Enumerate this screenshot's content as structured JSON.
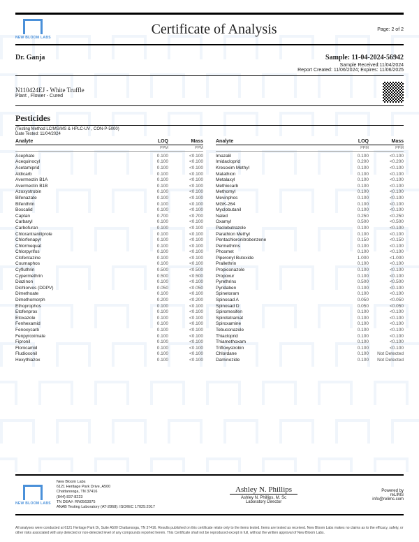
{
  "lab_name": "NEW BLOOM LABS",
  "title": "Certificate of Analysis",
  "page_label": "Page: 2 of 2",
  "client": "Dr. Ganja",
  "sample_id": "Sample: 11-04-2024-56942",
  "sample_received": "Sample Received:11/04/2024",
  "report_info": "Report Created: 11/06/2024; Expires: 11/06/2025",
  "product_code": "N110424EJ - White Truffle",
  "product_type": "Plant , Flower - Cured",
  "section_title": "Pesticides",
  "method": "(Testing Method LC/MS/MS & HPLC-UV , CON-P-5000)",
  "date_tested": "Date Tested: 11/04/2024",
  "headers": {
    "analyte": "Analyte",
    "loq": "LOQ",
    "mass": "Mass",
    "ppm": "PPM"
  },
  "left": [
    {
      "a": "Acephate",
      "l": "0.100",
      "m": "<0.100"
    },
    {
      "a": "Acequinocyl",
      "l": "0.100",
      "m": "<0.100"
    },
    {
      "a": "Acetamiprid",
      "l": "0.100",
      "m": "<0.100"
    },
    {
      "a": "Aldicarb",
      "l": "0.100",
      "m": "<0.100"
    },
    {
      "a": "Avermectin B1A",
      "l": "0.100",
      "m": "<0.100"
    },
    {
      "a": "Avermectin B1B",
      "l": "0.100",
      "m": "<0.100"
    },
    {
      "a": "Azoxystrobin",
      "l": "0.100",
      "m": "<0.100"
    },
    {
      "a": "Bifenazate",
      "l": "0.100",
      "m": "<0.100"
    },
    {
      "a": "Bifenthrin",
      "l": "0.100",
      "m": "<0.100"
    },
    {
      "a": "Boscalid",
      "l": "0.100",
      "m": "<0.100"
    },
    {
      "a": "Captan",
      "l": "0.700",
      "m": "<0.700"
    },
    {
      "a": "Carbaryl",
      "l": "0.100",
      "m": "<0.100"
    },
    {
      "a": "Carbofuran",
      "l": "0.100",
      "m": "<0.100"
    },
    {
      "a": "Chlorantraniliprole",
      "l": "0.100",
      "m": "<0.100"
    },
    {
      "a": "Chlorfenapyr",
      "l": "0.100",
      "m": "<0.100"
    },
    {
      "a": "Chlormequat",
      "l": "0.100",
      "m": "<0.100"
    },
    {
      "a": "Chlorpyrifos",
      "l": "0.100",
      "m": "<0.100"
    },
    {
      "a": "Clofentazine",
      "l": "0.100",
      "m": "<0.100"
    },
    {
      "a": "Coumaphos",
      "l": "0.100",
      "m": "<0.100"
    },
    {
      "a": "Cyfluthrin",
      "l": "0.500",
      "m": "<0.500"
    },
    {
      "a": "Cypermethrin",
      "l": "0.500",
      "m": "<0.500"
    },
    {
      "a": "Diazinon",
      "l": "0.100",
      "m": "<0.100"
    },
    {
      "a": "Dichlorvos (DDPV)",
      "l": "0.050",
      "m": "<0.050"
    },
    {
      "a": "Dimethoate",
      "l": "0.100",
      "m": "<0.100"
    },
    {
      "a": "Dimethomorph",
      "l": "0.200",
      "m": "<0.200"
    },
    {
      "a": "Ethoprophos",
      "l": "0.100",
      "m": "<0.100"
    },
    {
      "a": "Etofenprox",
      "l": "0.100",
      "m": "<0.100"
    },
    {
      "a": "Etoxazole",
      "l": "0.100",
      "m": "<0.100"
    },
    {
      "a": "Fenhexamid",
      "l": "0.100",
      "m": "<0.100"
    },
    {
      "a": "Fenoxycarb",
      "l": "0.100",
      "m": "<0.100"
    },
    {
      "a": "Fenpyroximate",
      "l": "0.100",
      "m": "<0.100"
    },
    {
      "a": "Fipronil",
      "l": "0.100",
      "m": "<0.100"
    },
    {
      "a": "Flonicamid",
      "l": "0.100",
      "m": "<0.100"
    },
    {
      "a": "Fludioxonil",
      "l": "0.100",
      "m": "<0.100"
    },
    {
      "a": "Hexythiazox",
      "l": "0.100",
      "m": "<0.100"
    }
  ],
  "right": [
    {
      "a": "Imazalil",
      "l": "0.100",
      "m": "<0.100"
    },
    {
      "a": "Imidacloprid",
      "l": "0.200",
      "m": "<0.200"
    },
    {
      "a": "Kresoxim Methyl",
      "l": "0.100",
      "m": "<0.100"
    },
    {
      "a": "Malathion",
      "l": "0.100",
      "m": "<0.100"
    },
    {
      "a": "Metalaxyl",
      "l": "0.100",
      "m": "<0.100"
    },
    {
      "a": "Methiocarb",
      "l": "0.100",
      "m": "<0.100"
    },
    {
      "a": "Methomyl",
      "l": "0.100",
      "m": "<0.100"
    },
    {
      "a": "Mevinphos",
      "l": "0.100",
      "m": "<0.100"
    },
    {
      "a": "MGK-264",
      "l": "0.100",
      "m": "<0.100"
    },
    {
      "a": "Myclobutanil",
      "l": "0.100",
      "m": "<0.100"
    },
    {
      "a": "Naled",
      "l": "0.250",
      "m": "<0.250"
    },
    {
      "a": "Oxamyl",
      "l": "0.500",
      "m": "<0.500"
    },
    {
      "a": "Paclobutrazole",
      "l": "0.100",
      "m": "<0.100"
    },
    {
      "a": "Parathion Methyl",
      "l": "0.100",
      "m": "<0.100"
    },
    {
      "a": "Pentachloronitrobenzene",
      "l": "0.150",
      "m": "<0.150"
    },
    {
      "a": "Permethrins",
      "l": "0.100",
      "m": "<0.100"
    },
    {
      "a": "Phosmet",
      "l": "0.100",
      "m": "<0.100"
    },
    {
      "a": "Piperonyl Butoxide",
      "l": "1.000",
      "m": "<1.000"
    },
    {
      "a": "Prallethrin",
      "l": "0.100",
      "m": "<0.100"
    },
    {
      "a": "Propiconazole",
      "l": "0.100",
      "m": "<0.100"
    },
    {
      "a": "Propoxur",
      "l": "0.100",
      "m": "<0.100"
    },
    {
      "a": "Pyrethrins",
      "l": "0.500",
      "m": "<0.500"
    },
    {
      "a": "Pyridaben",
      "l": "0.100",
      "m": "<0.100"
    },
    {
      "a": "Spinetoram",
      "l": "0.100",
      "m": "<0.100"
    },
    {
      "a": "Spinosad A",
      "l": "0.050",
      "m": "<0.050"
    },
    {
      "a": "Spinosad D",
      "l": "0.050",
      "m": "<0.050"
    },
    {
      "a": "Spiromesifen",
      "l": "0.100",
      "m": "<0.100"
    },
    {
      "a": "Spirotetramat",
      "l": "0.100",
      "m": "<0.100"
    },
    {
      "a": "Spiroxamine",
      "l": "0.100",
      "m": "<0.100"
    },
    {
      "a": "Tebuconazole",
      "l": "0.100",
      "m": "<0.100"
    },
    {
      "a": "Thiacloprid",
      "l": "0.100",
      "m": "<0.100"
    },
    {
      "a": "Thiamethoxam",
      "l": "0.100",
      "m": "<0.100"
    },
    {
      "a": "Trifloxystrobin",
      "l": "0.100",
      "m": "<0.100"
    },
    {
      "a": "Chlordane",
      "l": "0.100",
      "m": "Not Detected"
    },
    {
      "a": "Daminozide",
      "l": "0.100",
      "m": "Not Detected"
    }
  ],
  "footer": {
    "addr1": "New Bloom Labs",
    "addr2": "6121 Heritage Park Drive, A500",
    "addr3": "Chattanooga, TN 37416",
    "phone": "(844) 837-8223",
    "dea": "TN DEA#: RN0563975",
    "cert": "ANAB Testing Laboratory (AT-2868): ISO/IEC 17025:2017",
    "sig": "Ashley N. Phillips",
    "sig_name": "Ashley N. Phillips, M. Sc",
    "sig_title": "Laboratory Director",
    "powered": "Powered by",
    "system": "reLIMS",
    "email": "info@relims.com"
  },
  "disclaimer": "All analyses were conducted at 6121 Heritage Park Dr, Suite A500 Chattanooga, TN 37416. Results published on this certificate relate only to the items tested. Items are tested as received. New Bloom Labs makes no claims as to the efficacy, safety, or other risks associated with any detected or non-detected level of any compounds reported herein. This Certificate shall not be reproduced except in full, without the written approval of New Bloom Labs.",
  "colors": {
    "brand": "#4a90d9"
  }
}
